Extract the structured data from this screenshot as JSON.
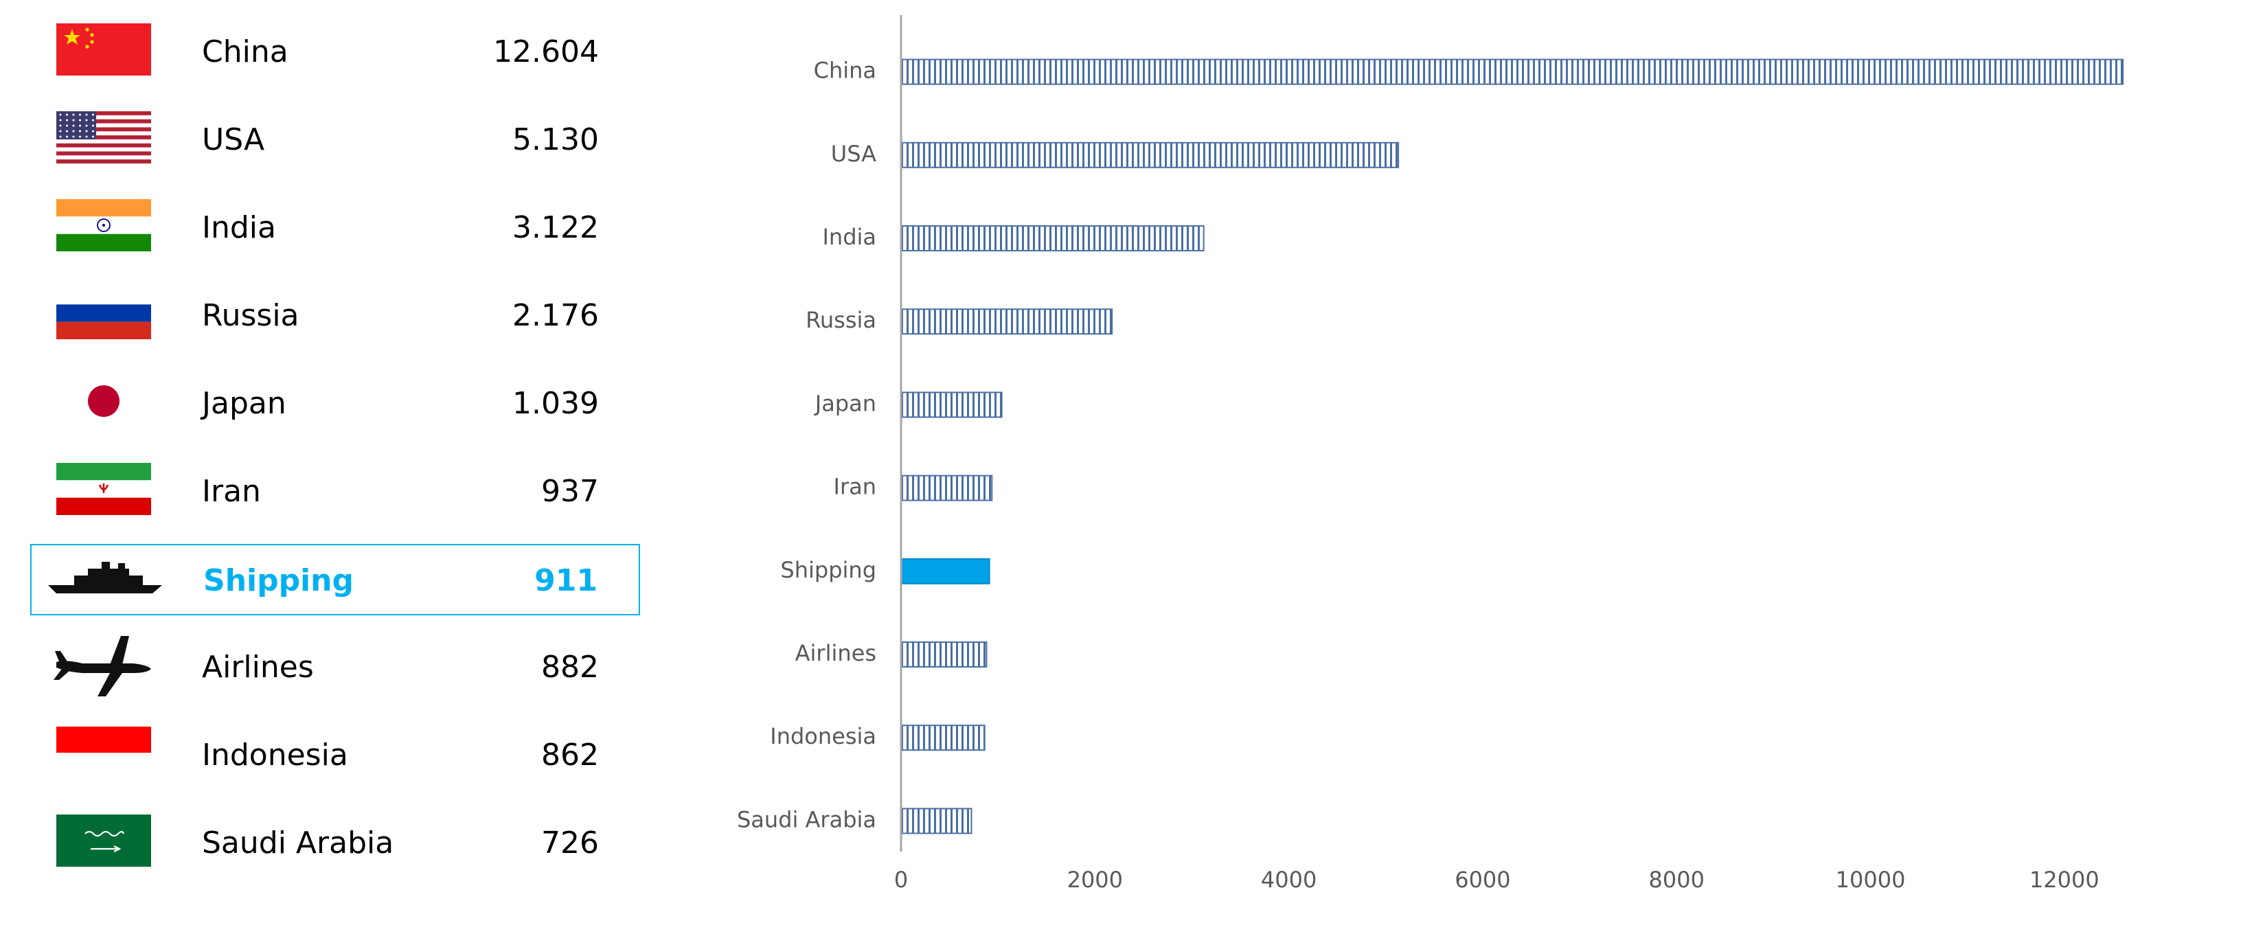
{
  "colors": {
    "highlight": "#00b0f0",
    "bar_fill": "#ffffff",
    "bar_hatch": "#4a6fa5",
    "highlight_bar": "#00a2e8",
    "axis": "#a6a6a6",
    "label": "#595959"
  },
  "table": {
    "rows": [
      {
        "name": "China",
        "value": "12.604",
        "icon": "china-flag-icon",
        "highlight": false
      },
      {
        "name": "USA",
        "value": "5.130",
        "icon": "usa-flag-icon",
        "highlight": false
      },
      {
        "name": "India",
        "value": "3.122",
        "icon": "india-flag-icon",
        "highlight": false
      },
      {
        "name": "Russia",
        "value": "2.176",
        "icon": "russia-flag-icon",
        "highlight": false
      },
      {
        "name": "Japan",
        "value": "1.039",
        "icon": "japan-flag-icon",
        "highlight": false
      },
      {
        "name": "Iran",
        "value": "937",
        "icon": "iran-flag-icon",
        "highlight": false
      },
      {
        "name": "Shipping",
        "value": "911",
        "icon": "ship-icon",
        "highlight": true
      },
      {
        "name": "Airlines",
        "value": "882",
        "icon": "airplane-icon",
        "highlight": false
      },
      {
        "name": "Indonesia",
        "value": "862",
        "icon": "indonesia-flag-icon",
        "highlight": false
      },
      {
        "name": "Saudi Arabia",
        "value": "726",
        "icon": "saudi-arabia-flag-icon",
        "highlight": false
      }
    ]
  },
  "chart_data": {
    "type": "bar",
    "orientation": "horizontal",
    "categories": [
      "China",
      "USA",
      "India",
      "Russia",
      "Japan",
      "Iran",
      "Shipping",
      "Airlines",
      "Indonesia",
      "Saudi Arabia"
    ],
    "values": [
      12604,
      5130,
      3122,
      2176,
      1039,
      937,
      911,
      882,
      862,
      726
    ],
    "highlight_category": "Shipping",
    "xlim": [
      0,
      13000
    ],
    "xticks": [
      0,
      2000,
      4000,
      6000,
      8000,
      10000,
      12000
    ],
    "xtick_labels": [
      "0",
      "2000",
      "4000",
      "6000",
      "8000",
      "10000",
      "12000"
    ],
    "title": "",
    "xlabel": "",
    "ylabel": "",
    "grid": false,
    "legend": "none"
  }
}
